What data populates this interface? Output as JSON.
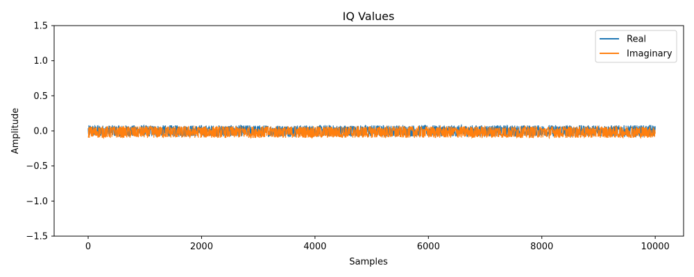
{
  "chart_data": {
    "type": "line",
    "title": "IQ Values",
    "xlabel": "Samples",
    "ylabel": "Amplitude",
    "xlim": [
      -600,
      10500
    ],
    "ylim": [
      -1.5,
      1.5
    ],
    "xticks": [
      0,
      2000,
      4000,
      6000,
      8000,
      10000
    ],
    "xtick_labels": [
      "0",
      "2000",
      "4000",
      "6000",
      "8000",
      "10000"
    ],
    "yticks": [
      -1.5,
      -1.0,
      -0.5,
      0.0,
      0.5,
      1.0,
      1.5
    ],
    "ytick_labels": [
      "−1.5",
      "−1.0",
      "−0.5",
      "0.0",
      "0.5",
      "1.0",
      "1.5"
    ],
    "grid": false,
    "legend_position": "top-right",
    "x_range": [
      0,
      10000
    ],
    "series": [
      {
        "name": "Real",
        "color": "#1f77b4",
        "min": -0.08,
        "max": 0.08
      },
      {
        "name": "Imaginary",
        "color": "#ff7f0e",
        "min": -0.1,
        "max": 0.065
      }
    ]
  }
}
